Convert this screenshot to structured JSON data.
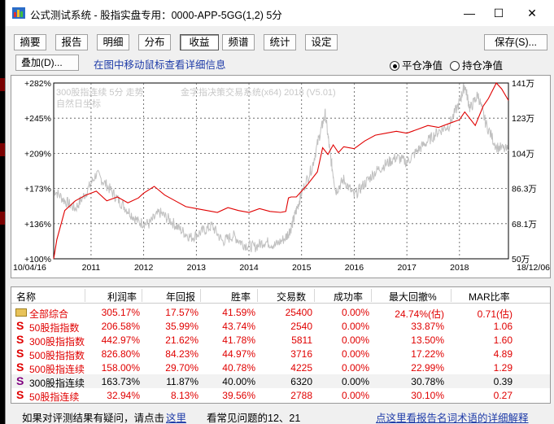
{
  "window": {
    "title": "公式测试系统 - 股指实盘专用：0000-APP-5GG(1,2) 5分",
    "minimize": "—",
    "maximize": "☐",
    "close": "✕"
  },
  "toolbar": {
    "tabs": [
      "摘要",
      "报告",
      "明细",
      "分布",
      "收益",
      "频谱",
      "统计",
      "设定"
    ],
    "active_tab": "收益",
    "save_label": "保存(S)..."
  },
  "subbar": {
    "overlay_label": "叠加(D)...",
    "hint": "在图中移动鼠标查看详细信息",
    "radio_options": [
      "平仓净值",
      "持仓净值"
    ],
    "radio_selected": "平仓净值"
  },
  "chart": {
    "legend_line1_a": "300股指连续 5分 走势",
    "legend_line1_b": "金字指决策交易系统(x64) 2018 (V5.01)",
    "legend_line2": "自然日坐标",
    "left_ticks": [
      "+282%",
      "+245%",
      "+209%",
      "+173%",
      "+136%",
      "+100%"
    ],
    "right_ticks": [
      "141万",
      "123万",
      "104万",
      "86.3万",
      "68.1万",
      "50万"
    ],
    "x_start": "10/04/16",
    "x_end": "18/12/06",
    "x_years": [
      "2011",
      "2012",
      "2013",
      "2014",
      "2015",
      "2016",
      "2017",
      "2018"
    ]
  },
  "chart_data": {
    "type": "line",
    "x_range": [
      "2010-04-16",
      "2018-12-06"
    ],
    "left_axis_range_pct": [
      100,
      282
    ],
    "right_axis_range": [
      500000,
      1410000
    ],
    "series": [
      {
        "color": "#e00000",
        "x": [
          2010.29,
          2010.35,
          2010.5,
          2010.7,
          2010.9,
          2011.1,
          2011.3,
          2011.5,
          2011.7,
          2011.9,
          2012.0,
          2012.2,
          2012.4,
          2012.6,
          2012.8,
          2013.0,
          2013.2,
          2013.4,
          2013.6,
          2013.8,
          2014.0,
          2014.2,
          2014.4,
          2014.6,
          2014.7,
          2014.75,
          2014.8,
          2014.9,
          2015.0,
          2015.1,
          2015.3,
          2015.4,
          2015.5,
          2015.6,
          2015.7,
          2015.8,
          2016.0,
          2016.2,
          2016.4,
          2016.6,
          2016.8,
          2017.0,
          2017.2,
          2017.4,
          2017.6,
          2017.8,
          2018.0,
          2018.1,
          2018.3,
          2018.45,
          2018.55,
          2018.7,
          2018.8,
          2018.93
        ],
        "y": [
          100,
          120,
          150,
          160,
          166,
          170,
          160,
          164,
          158,
          163,
          168,
          175,
          166,
          160,
          154,
          152,
          150,
          148,
          153,
          150,
          148,
          152,
          149,
          148,
          149,
          163,
          164,
          164,
          170,
          176,
          190,
          215,
          208,
          218,
          210,
          216,
          214,
          222,
          228,
          230,
          232,
          230,
          234,
          238,
          236,
          240,
          244,
          252,
          238,
          258,
          266,
          282,
          276,
          264
        ]
      },
      {
        "color": "#c0c0c0",
        "x": [
          2010.29,
          2010.5,
          2010.7,
          2010.9,
          2011.1,
          2011.3,
          2011.5,
          2011.7,
          2011.9,
          2012.1,
          2012.3,
          2012.5,
          2012.7,
          2012.9,
          2013.1,
          2013.3,
          2013.5,
          2013.7,
          2013.9,
          2014.1,
          2014.3,
          2014.5,
          2014.7,
          2014.8,
          2014.9,
          2015.0,
          2015.2,
          2015.35,
          2015.45,
          2015.55,
          2015.65,
          2015.8,
          2016.0,
          2016.2,
          2016.4,
          2016.6,
          2016.8,
          2017.0,
          2017.2,
          2017.4,
          2017.6,
          2017.8,
          2018.0,
          2018.1,
          2018.2,
          2018.35,
          2018.5,
          2018.7,
          2018.93
        ],
        "y": [
          172,
          160,
          152,
          168,
          188,
          176,
          162,
          150,
          138,
          136,
          148,
          140,
          130,
          122,
          128,
          134,
          118,
          124,
          115,
          112,
          118,
          114,
          122,
          132,
          150,
          168,
          195,
          230,
          250,
          205,
          170,
          182,
          165,
          178,
          190,
          198,
          205,
          200,
          212,
          222,
          232,
          238,
          262,
          280,
          255,
          270,
          240,
          216,
          212
        ]
      }
    ]
  },
  "table": {
    "headers": [
      "名称",
      "利润率",
      "年回报",
      "胜率",
      "交易数",
      "成功率",
      "最大回撤%",
      "MAR比率"
    ],
    "rows": [
      {
        "icon": "folder",
        "icon_color": "#c8a030",
        "name": "全部综合",
        "profit": "305.17%",
        "annual": "17.57%",
        "win": "41.59%",
        "trades": "25400",
        "success": "0.00%",
        "drawdown": "24.74%(估)",
        "mar": "0.71(估)",
        "color": "#e00000"
      },
      {
        "icon": "S",
        "icon_color": "#e00000",
        "name": "50股指指数",
        "profit": "206.58%",
        "annual": "35.99%",
        "win": "43.74%",
        "trades": "2540",
        "success": "0.00%",
        "drawdown": "33.87%",
        "mar": "1.06",
        "color": "#e00000"
      },
      {
        "icon": "S",
        "icon_color": "#e00000",
        "name": "300股指指数",
        "profit": "442.97%",
        "annual": "21.62%",
        "win": "41.78%",
        "trades": "5811",
        "success": "0.00%",
        "drawdown": "13.50%",
        "mar": "1.60",
        "color": "#e00000"
      },
      {
        "icon": "S",
        "icon_color": "#e00000",
        "name": "500股指指数",
        "profit": "826.80%",
        "annual": "84.23%",
        "win": "44.97%",
        "trades": "3716",
        "success": "0.00%",
        "drawdown": "17.22%",
        "mar": "4.89",
        "color": "#e00000"
      },
      {
        "icon": "S",
        "icon_color": "#e00000",
        "name": "500股指连续",
        "profit": "158.00%",
        "annual": "29.70%",
        "win": "40.78%",
        "trades": "4225",
        "success": "0.00%",
        "drawdown": "22.99%",
        "mar": "1.29",
        "color": "#e00000"
      },
      {
        "icon": "S",
        "icon_color": "#800080",
        "name": "300股指连续",
        "profit": "163.73%",
        "annual": "11.87%",
        "win": "40.00%",
        "trades": "6320",
        "success": "0.00%",
        "drawdown": "30.78%",
        "mar": "0.39",
        "color": "#000000"
      },
      {
        "icon": "S",
        "icon_color": "#e00000",
        "name": "50股指连续",
        "profit": "32.94%",
        "annual": "8.13%",
        "win": "39.56%",
        "trades": "2788",
        "success": "0.00%",
        "drawdown": "30.10%",
        "mar": "0.27",
        "color": "#e00000"
      }
    ]
  },
  "footer": {
    "question": "如果对评测结果有疑问，请点击",
    "link_here": "这里",
    "faq": "看常见问题的12、21",
    "report_link": "点这里看报告名词术语的详细解释"
  }
}
